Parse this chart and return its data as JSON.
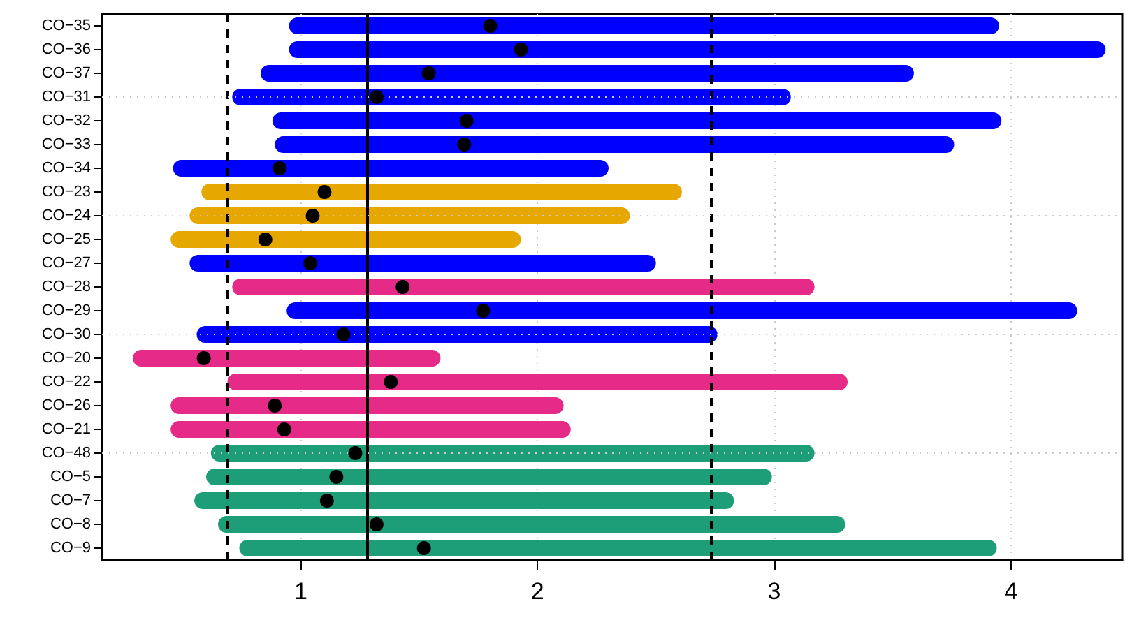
{
  "chart_data": {
    "type": "bar",
    "orientation": "horizontal",
    "categories": [
      "CO−35",
      "CO−36",
      "CO−37",
      "CO−31",
      "CO−32",
      "CO−33",
      "CO−34",
      "CO−23",
      "CO−24",
      "CO−25",
      "CO−27",
      "CO−28",
      "CO−29",
      "CO−30",
      "CO−20",
      "CO−22",
      "CO−26",
      "CO−21",
      "CO−48",
      "CO−5",
      "CO−7",
      "CO−8",
      "CO−9"
    ],
    "series": [
      {
        "base": [
          0.95,
          0.95,
          0.83,
          0.71,
          0.88,
          0.89,
          0.46,
          0.58,
          0.53,
          0.45,
          0.53,
          0.71,
          0.94,
          0.56,
          0.29,
          0.69,
          0.45,
          0.45,
          0.62,
          0.6,
          0.55,
          0.65,
          0.74
        ],
        "values": [
          3.0,
          3.45,
          2.76,
          2.36,
          3.08,
          2.87,
          1.84,
          2.03,
          1.86,
          1.48,
          1.97,
          2.46,
          3.34,
          2.2,
          1.3,
          2.62,
          1.66,
          1.69,
          2.55,
          2.39,
          2.28,
          2.65,
          3.2
        ],
        "colors": [
          "#0000ff",
          "#0000ff",
          "#0000ff",
          "#0000ff",
          "#0000ff",
          "#0000ff",
          "#0000ff",
          "#e6a800",
          "#e6a800",
          "#e6a800",
          "#0000ff",
          "#e52a87",
          "#0000ff",
          "#0000ff",
          "#e52a87",
          "#e52a87",
          "#e52a87",
          "#e52a87",
          "#1e9e78",
          "#1e9e78",
          "#1e9e78",
          "#1e9e78",
          "#1e9e78"
        ]
      },
      {
        "type": "scatter",
        "color": "#000000",
        "values": [
          1.8,
          1.93,
          1.54,
          1.32,
          1.7,
          1.69,
          0.91,
          1.1,
          1.05,
          0.85,
          1.04,
          1.43,
          1.77,
          1.18,
          0.59,
          1.38,
          0.89,
          0.93,
          1.23,
          1.15,
          1.11,
          1.32,
          1.52
        ]
      }
    ],
    "xlim": [
      0.16,
      4.47
    ],
    "xticks": [
      1,
      2,
      3,
      4
    ],
    "ref_lines": [
      {
        "axis": "x",
        "value": 0.69,
        "line_style": "dashed",
        "color": "#000000"
      },
      {
        "axis": "x",
        "value": 1.28,
        "line_style": "solid",
        "color": "#000000"
      },
      {
        "axis": "x",
        "value": 2.73,
        "line_style": "dashed",
        "color": "#000000"
      }
    ],
    "grid": true,
    "marker": "circle"
  }
}
